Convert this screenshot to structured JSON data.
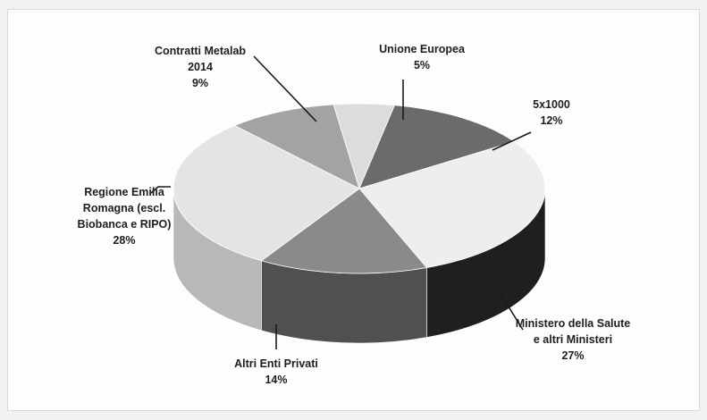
{
  "chart_data": {
    "type": "pie",
    "title": "",
    "legend": "none",
    "slices": [
      {
        "label": [
          "Unione Europea"
        ],
        "percent_label": "5%",
        "value": 5,
        "top_color": "#dcdcdc",
        "side_color": "#8e8e8e"
      },
      {
        "label": [
          "5x1000"
        ],
        "percent_label": "12%",
        "value": 12,
        "top_color": "#6b6b6b",
        "side_color": "#3a3a3a"
      },
      {
        "label": [
          "Ministero della Salute",
          "e altri Ministeri"
        ],
        "percent_label": "27%",
        "value": 27,
        "top_color": "#eeeeee",
        "side_color": "#1f1f1f"
      },
      {
        "label": [
          "Altri Enti Privati"
        ],
        "percent_label": "14%",
        "value": 14,
        "top_color": "#8a8a8a",
        "side_color": "#505050"
      },
      {
        "label": [
          "Regione Emilia",
          "Romagna (escl.",
          "Biobanca e RIPO)"
        ],
        "percent_label": "28%",
        "value": 28,
        "top_color": "#e4e4e4",
        "side_color": "#b8b8b8"
      },
      {
        "label": [
          "Contratti Metalab",
          "2014"
        ],
        "percent_label": "9%",
        "value": 9,
        "top_color": "#a3a3a3",
        "side_color": "#707070"
      }
    ]
  }
}
